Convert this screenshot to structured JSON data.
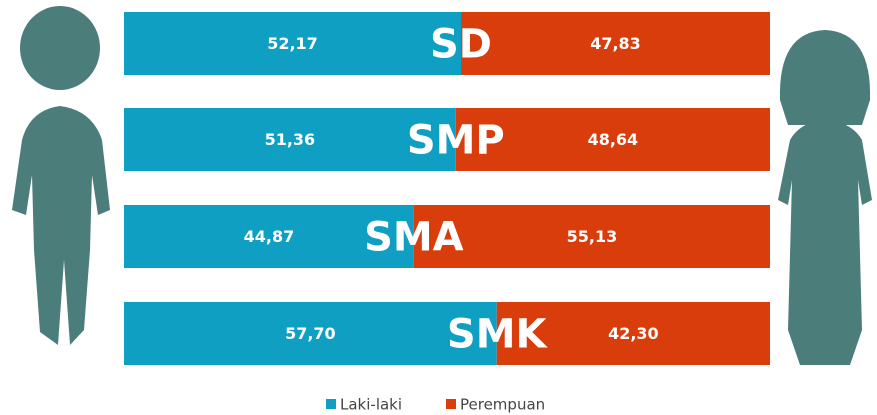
{
  "chart_data": {
    "type": "stacked-bar-100",
    "categories": [
      "SD",
      "SMP",
      "SMA",
      "SMK"
    ],
    "series": [
      {
        "name": "Laki-laki",
        "color": "#0e9fc3",
        "values": [
          52.17,
          51.36,
          44.87,
          57.7
        ],
        "value_labels": [
          "52,17",
          "51,36",
          "44,87",
          "57,70"
        ]
      },
      {
        "name": "Perempuan",
        "color": "#d93d0b",
        "values": [
          47.83,
          48.64,
          55.13,
          42.3
        ],
        "value_labels": [
          "47,83",
          "48,64",
          "55,13",
          "42,30"
        ]
      }
    ],
    "xlim": [
      0,
      100
    ]
  }
}
